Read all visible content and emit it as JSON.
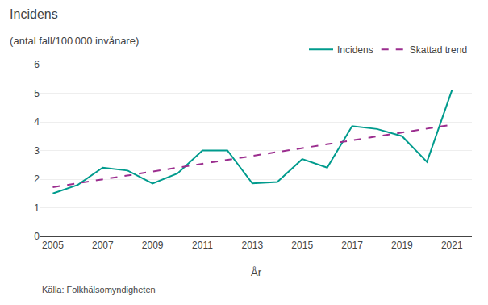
{
  "chart_data": {
    "type": "line",
    "title": "Incidens",
    "subtitle": "(antal fall/100 000 invånare)",
    "x_label": "År",
    "x": [
      2005,
      2006,
      2007,
      2008,
      2009,
      2010,
      2011,
      2012,
      2013,
      2014,
      2015,
      2016,
      2017,
      2018,
      2019,
      2020,
      2021
    ],
    "series": [
      {
        "name": "Incidens",
        "color": "#009B8D",
        "line_style": "solid",
        "values": [
          1.5,
          1.8,
          2.4,
          2.3,
          1.85,
          2.2,
          3.0,
          3.0,
          1.85,
          1.9,
          2.7,
          2.4,
          3.85,
          3.75,
          3.5,
          2.6,
          5.1
        ]
      },
      {
        "name": "Skattad trend",
        "color": "#9B2D8E",
        "line_style": "dashed",
        "x": [
          2005,
          2021
        ],
        "values": [
          1.72,
          3.9
        ]
      }
    ],
    "xlim": [
      2004.5,
      2021.8
    ],
    "xticks": [
      2005,
      2007,
      2009,
      2011,
      2013,
      2015,
      2017,
      2019,
      2021
    ],
    "ylim": [
      0,
      6
    ],
    "yticks": [
      0,
      1,
      2,
      3,
      4,
      5,
      6
    ],
    "grid": "y",
    "legend": "top",
    "annotations": [
      "Källa: Folkhälsomyndigheten"
    ]
  }
}
